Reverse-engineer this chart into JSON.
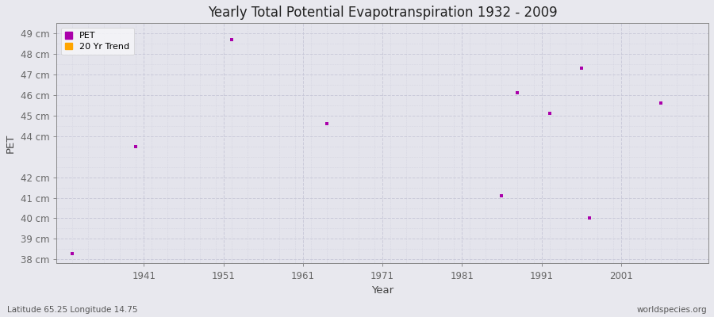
{
  "title": "Yearly Total Potential Evapotranspiration 1932 - 2009",
  "xlabel": "Year",
  "ylabel": "PET",
  "subtitle_left": "Latitude 65.25 Longitude 14.75",
  "subtitle_right": "worldspecies.org",
  "pet_color": "#aa00aa",
  "trend_color": "#ffa500",
  "background_color": "#e8e8ee",
  "plot_bg_color": "#e4e4ec",
  "grid_color_major": "#ccccdd",
  "grid_color_minor": "#d8d8e4",
  "ylim_min": 37.8,
  "ylim_max": 49.5,
  "xlim_min": 1930,
  "xlim_max": 2012,
  "yticks": [
    38,
    39,
    40,
    41,
    42,
    44,
    45,
    46,
    47,
    48,
    49
  ],
  "ytick_labels": [
    "38 cm",
    "39 cm",
    "40 cm",
    "41 cm",
    "42 cm",
    "44 cm",
    "45 cm",
    "46 cm",
    "47 cm",
    "48 cm",
    "49 cm"
  ],
  "xticks": [
    1941,
    1951,
    1961,
    1971,
    1981,
    1991,
    2001
  ],
  "data_points": [
    {
      "year": 1932,
      "value": 38.3
    },
    {
      "year": 1940,
      "value": 43.5
    },
    {
      "year": 1952,
      "value": 48.7
    },
    {
      "year": 1964,
      "value": 44.6
    },
    {
      "year": 1986,
      "value": 41.1
    },
    {
      "year": 1988,
      "value": 46.1
    },
    {
      "year": 1992,
      "value": 45.1
    },
    {
      "year": 1996,
      "value": 47.3
    },
    {
      "year": 1997,
      "value": 40.0
    },
    {
      "year": 2006,
      "value": 45.6
    }
  ]
}
